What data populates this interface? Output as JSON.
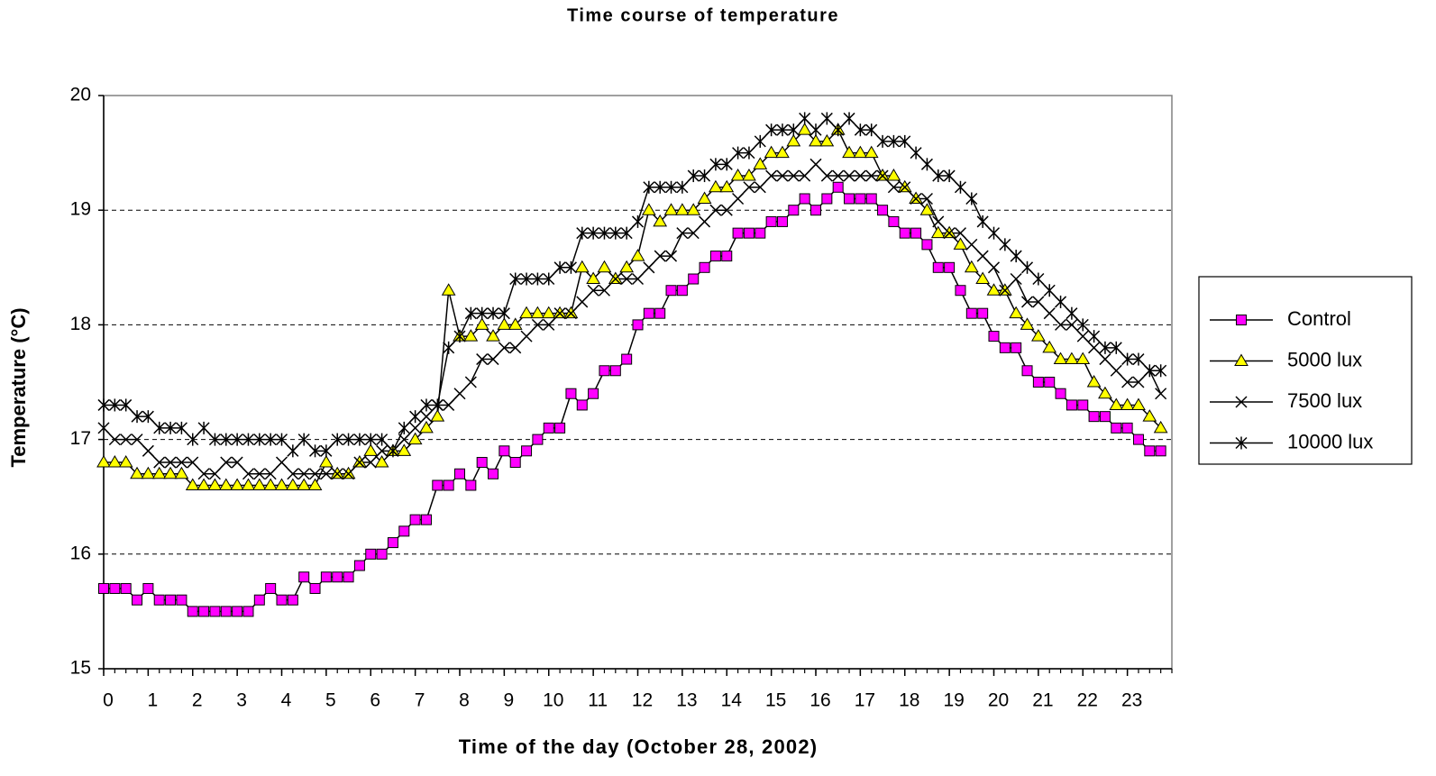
{
  "chart_data": {
    "type": "line",
    "title": "Time course of temperature",
    "x_label": "Time of the day (October 28, 2002)",
    "y_label": "Temperature (°C)",
    "x": [
      0,
      0.25,
      0.5,
      0.75,
      1,
      1.25,
      1.5,
      1.75,
      2,
      2.25,
      2.5,
      2.75,
      3,
      3.25,
      3.5,
      3.75,
      4,
      4.25,
      4.5,
      4.75,
      5,
      5.25,
      5.5,
      5.75,
      6,
      6.25,
      6.5,
      6.75,
      7,
      7.25,
      7.5,
      7.75,
      8,
      8.25,
      8.5,
      8.75,
      9,
      9.25,
      9.5,
      9.75,
      10,
      10.25,
      10.5,
      10.75,
      11,
      11.25,
      11.5,
      11.75,
      12,
      12.25,
      12.5,
      12.75,
      13,
      13.25,
      13.5,
      13.75,
      14,
      14.25,
      14.5,
      14.75,
      15,
      15.25,
      15.5,
      15.75,
      16,
      16.25,
      16.5,
      16.75,
      17,
      17.25,
      17.5,
      17.75,
      18,
      18.25,
      18.5,
      18.75,
      19,
      19.25,
      19.5,
      19.75,
      20,
      20.25,
      20.5,
      20.75,
      21,
      21.25,
      21.5,
      21.75,
      22,
      22.25,
      22.5,
      22.75,
      23,
      23.25,
      23.5,
      23.75
    ],
    "series": [
      {
        "name": "Control",
        "color": "#ff00ff",
        "marker": "square",
        "values": [
          15.7,
          15.7,
          15.7,
          15.6,
          15.7,
          15.6,
          15.6,
          15.6,
          15.5,
          15.5,
          15.5,
          15.5,
          15.5,
          15.5,
          15.6,
          15.7,
          15.6,
          15.6,
          15.8,
          15.7,
          15.8,
          15.8,
          15.8,
          15.9,
          16.0,
          16.0,
          16.1,
          16.2,
          16.3,
          16.3,
          16.6,
          16.6,
          16.7,
          16.6,
          16.8,
          16.7,
          16.9,
          16.8,
          16.9,
          17.0,
          17.1,
          17.1,
          17.4,
          17.3,
          17.4,
          17.6,
          17.6,
          17.7,
          18.0,
          18.1,
          18.1,
          18.3,
          18.3,
          18.4,
          18.5,
          18.6,
          18.6,
          18.8,
          18.8,
          18.8,
          18.9,
          18.9,
          19.0,
          19.1,
          19.0,
          19.1,
          19.2,
          19.1,
          19.1,
          19.1,
          19.0,
          18.9,
          18.8,
          18.8,
          18.7,
          18.5,
          18.5,
          18.3,
          18.1,
          18.1,
          17.9,
          17.8,
          17.8,
          17.6,
          17.5,
          17.5,
          17.4,
          17.3,
          17.3,
          17.2,
          17.2,
          17.1,
          17.1,
          17.0,
          16.9,
          16.9
        ]
      },
      {
        "name": "5000 lux",
        "color": "#ffff00",
        "marker": "triangle",
        "values": [
          16.8,
          16.8,
          16.8,
          16.7,
          16.7,
          16.7,
          16.7,
          16.7,
          16.6,
          16.6,
          16.6,
          16.6,
          16.6,
          16.6,
          16.6,
          16.6,
          16.6,
          16.6,
          16.6,
          16.6,
          16.8,
          16.7,
          16.7,
          16.8,
          16.9,
          16.8,
          16.9,
          16.9,
          17.0,
          17.1,
          17.2,
          18.3,
          17.9,
          17.9,
          18.0,
          17.9,
          18.0,
          18.0,
          18.1,
          18.1,
          18.1,
          18.1,
          18.1,
          18.5,
          18.4,
          18.5,
          18.4,
          18.5,
          18.6,
          19.0,
          18.9,
          19.0,
          19.0,
          19.0,
          19.1,
          19.2,
          19.2,
          19.3,
          19.3,
          19.4,
          19.5,
          19.5,
          19.6,
          19.7,
          19.6,
          19.6,
          19.7,
          19.5,
          19.5,
          19.5,
          19.3,
          19.3,
          19.2,
          19.1,
          19.0,
          18.8,
          18.8,
          18.7,
          18.5,
          18.4,
          18.3,
          18.3,
          18.1,
          18.0,
          17.9,
          17.8,
          17.7,
          17.7,
          17.7,
          17.5,
          17.4,
          17.3,
          17.3,
          17.3,
          17.2,
          17.1
        ]
      },
      {
        "name": "7500 lux",
        "color": "#000000",
        "marker": "x",
        "values": [
          17.1,
          17.0,
          17.0,
          17.0,
          16.9,
          16.8,
          16.8,
          16.8,
          16.8,
          16.7,
          16.7,
          16.8,
          16.8,
          16.7,
          16.7,
          16.7,
          16.8,
          16.7,
          16.7,
          16.7,
          16.7,
          16.7,
          16.7,
          16.8,
          16.8,
          16.9,
          16.9,
          17.0,
          17.1,
          17.2,
          17.3,
          17.3,
          17.4,
          17.5,
          17.7,
          17.7,
          17.8,
          17.8,
          17.9,
          18.0,
          18.0,
          18.1,
          18.1,
          18.2,
          18.3,
          18.3,
          18.4,
          18.4,
          18.4,
          18.5,
          18.6,
          18.6,
          18.8,
          18.8,
          18.9,
          19.0,
          19.0,
          19.1,
          19.2,
          19.2,
          19.3,
          19.3,
          19.3,
          19.3,
          19.4,
          19.3,
          19.3,
          19.3,
          19.3,
          19.3,
          19.3,
          19.2,
          19.2,
          19.1,
          19.1,
          18.9,
          18.8,
          18.8,
          18.7,
          18.6,
          18.5,
          18.3,
          18.4,
          18.2,
          18.2,
          18.1,
          18.0,
          18.0,
          17.9,
          17.8,
          17.7,
          17.6,
          17.5,
          17.5,
          17.6,
          17.4
        ]
      },
      {
        "name": "10000 lux",
        "color": "#000000",
        "marker": "asterisk",
        "values": [
          17.3,
          17.3,
          17.3,
          17.2,
          17.2,
          17.1,
          17.1,
          17.1,
          17.0,
          17.1,
          17.0,
          17.0,
          17.0,
          17.0,
          17.0,
          17.0,
          17.0,
          16.9,
          17.0,
          16.9,
          16.9,
          17.0,
          17.0,
          17.0,
          17.0,
          17.0,
          16.9,
          17.1,
          17.2,
          17.3,
          17.3,
          17.8,
          17.9,
          18.1,
          18.1,
          18.1,
          18.1,
          18.4,
          18.4,
          18.4,
          18.4,
          18.5,
          18.5,
          18.8,
          18.8,
          18.8,
          18.8,
          18.8,
          18.9,
          19.2,
          19.2,
          19.2,
          19.2,
          19.3,
          19.3,
          19.4,
          19.4,
          19.5,
          19.5,
          19.6,
          19.7,
          19.7,
          19.7,
          19.8,
          19.7,
          19.8,
          19.7,
          19.8,
          19.7,
          19.7,
          19.6,
          19.6,
          19.6,
          19.5,
          19.4,
          19.3,
          19.3,
          19.2,
          19.1,
          18.9,
          18.8,
          18.7,
          18.6,
          18.5,
          18.4,
          18.3,
          18.2,
          18.1,
          18.0,
          17.9,
          17.8,
          17.8,
          17.7,
          17.7,
          17.6,
          17.6
        ]
      }
    ],
    "line_color": "#000000",
    "xlim": [
      0,
      24
    ],
    "xticks": [
      0,
      1,
      2,
      3,
      4,
      5,
      6,
      7,
      8,
      9,
      10,
      11,
      12,
      13,
      14,
      15,
      16,
      17,
      18,
      19,
      20,
      21,
      22,
      23
    ],
    "ylim": [
      15,
      20
    ],
    "yticks": [
      15,
      16,
      17,
      18,
      19,
      20
    ],
    "grid": true,
    "legend": "right"
  }
}
